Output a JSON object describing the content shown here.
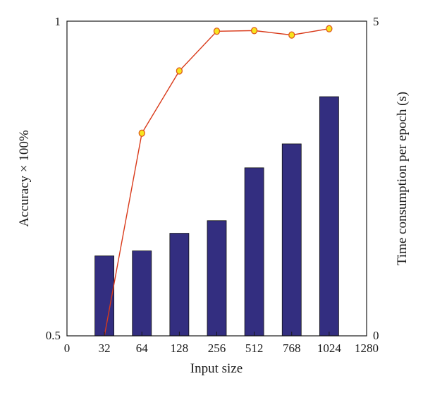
{
  "chart_data": {
    "type": "bar",
    "xlabel": "Input size",
    "ylabel_left": "Accuracy × 100%",
    "ylabel_right": "Time consumption per epoch (s)",
    "x_ticks": [
      "0",
      "32",
      "64",
      "128",
      "256",
      "512",
      "768",
      "1024",
      "1280"
    ],
    "y_left_ticks": [
      "0.5",
      "1"
    ],
    "y_right_ticks": [
      "0",
      "5"
    ],
    "y_left_range": [
      0.5,
      1
    ],
    "y_right_range": [
      0,
      5
    ],
    "categories": [
      "32",
      "64",
      "128",
      "256",
      "512",
      "768",
      "1024"
    ],
    "series": [
      {
        "type": "bar",
        "axis": "right",
        "color": "#332e80",
        "values": [
          1.27,
          1.35,
          1.63,
          1.83,
          2.67,
          3.05,
          3.8
        ]
      },
      {
        "type": "line",
        "axis": "left",
        "color": "#d93a1a",
        "marker_fill": "#f7e51e",
        "marker_stroke": "#e05a1a",
        "values": [
          0.5,
          0.822,
          0.921,
          0.984,
          0.985,
          0.978,
          0.988
        ]
      }
    ]
  }
}
